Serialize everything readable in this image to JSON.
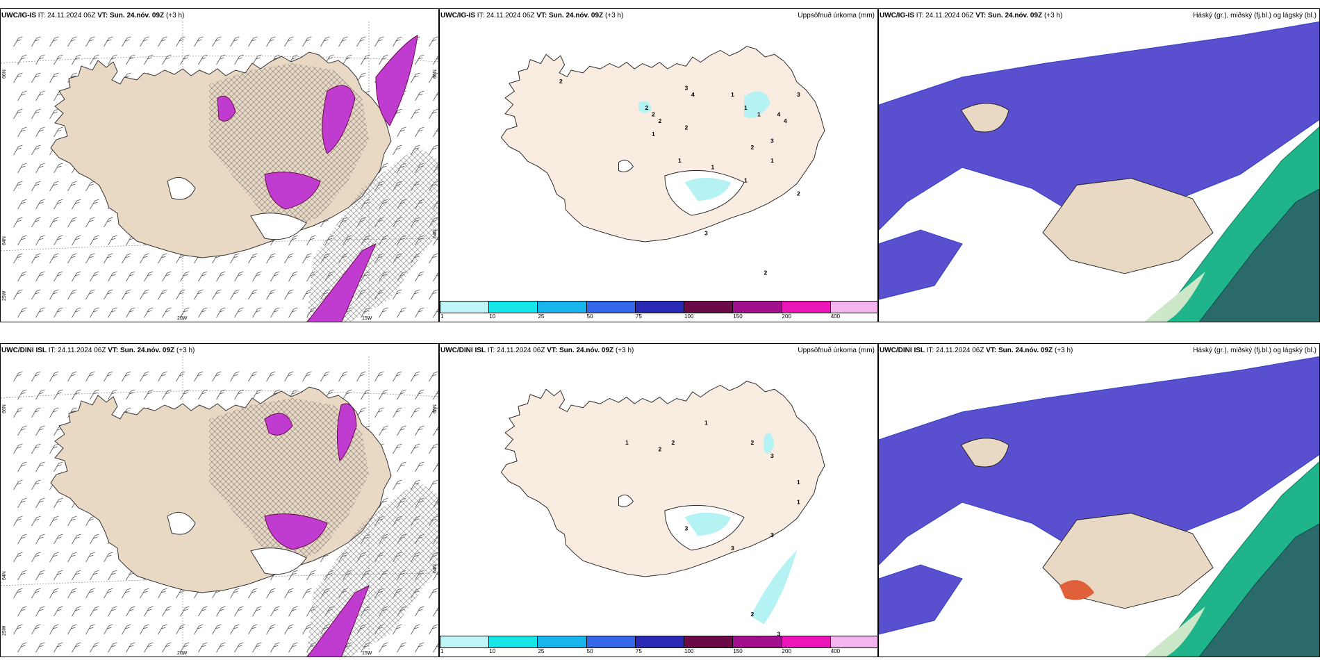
{
  "colors": {
    "land": "#e9d8c4",
    "land_precip": "#f9ece0",
    "magenta": "#c03cd0",
    "purple_high": "#5a4fcf",
    "cyan_rain": "#b4f2f4"
  },
  "rows": [
    {
      "model": "UWC/IG-IS",
      "it_label": "IT: 24.11.2024 06Z",
      "vt_label": "VT: Sun. 24.nóv. 09Z",
      "lead": "(+3 h)",
      "lat_labels": [
        "66N",
        "64N",
        "25W"
      ],
      "lat_labels_right": [
        "66N",
        "64N"
      ],
      "lon_labels": [
        "20W",
        "15W"
      ],
      "precip_numbers": [
        "2",
        "3",
        "4",
        "2",
        "2",
        "2",
        "2",
        "1",
        "1",
        "1",
        "4",
        "2",
        "3",
        "1",
        "1",
        "1",
        "1",
        "1",
        "2",
        "3",
        "4",
        "3",
        "2"
      ]
    },
    {
      "model": "UWC/DINI ISL",
      "it_label": "IT: 24.11.2024 06Z",
      "vt_label": "VT: Sun. 24.nóv. 09Z",
      "lead": "(+3 h)",
      "lat_labels": [
        "66N",
        "64N",
        "25W"
      ],
      "lat_labels_right": [
        "66N",
        "64N"
      ],
      "lon_labels": [
        "20W",
        "15W"
      ],
      "precip_numbers": [
        "1",
        "1",
        "2",
        "2",
        "2",
        "3",
        "1",
        "1",
        "3",
        "3",
        "3",
        "2",
        "3"
      ]
    }
  ],
  "precip_title": "Uppsöfnuð úrkoma (mm)",
  "cloud_title": "Háský (gr.), miðský (fj.bl.) og lágský (bl.)",
  "colorbar": {
    "ticks": [
      "1",
      "10",
      "25",
      "50",
      "75",
      "100",
      "150",
      "200",
      "400"
    ],
    "colors": [
      "#bff5f7",
      "#17e6e8",
      "#1ab4ec",
      "#3468e8",
      "#2a2ab4",
      "#6a0a46",
      "#a0108c",
      "#ea16b8",
      "#f4b4ee"
    ]
  }
}
